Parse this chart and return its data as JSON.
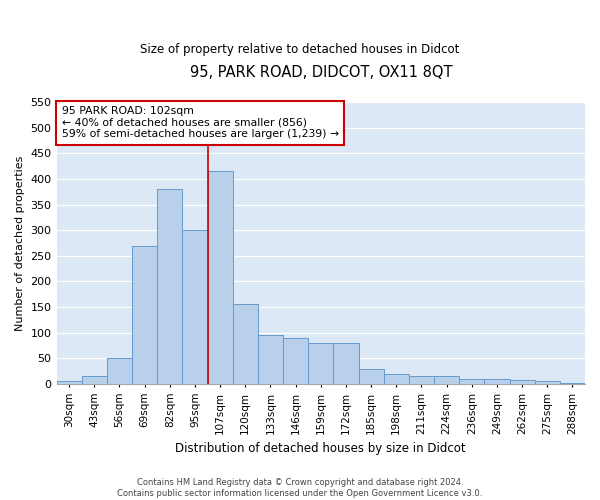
{
  "title": "95, PARK ROAD, DIDCOT, OX11 8QT",
  "subtitle": "Size of property relative to detached houses in Didcot",
  "xlabel": "Distribution of detached houses by size in Didcot",
  "ylabel": "Number of detached properties",
  "categories": [
    "30sqm",
    "43sqm",
    "56sqm",
    "69sqm",
    "82sqm",
    "95sqm",
    "107sqm",
    "120sqm",
    "133sqm",
    "146sqm",
    "159sqm",
    "172sqm",
    "185sqm",
    "198sqm",
    "211sqm",
    "224sqm",
    "236sqm",
    "249sqm",
    "262sqm",
    "275sqm",
    "288sqm"
  ],
  "values": [
    5,
    15,
    50,
    270,
    380,
    300,
    415,
    155,
    95,
    90,
    80,
    80,
    30,
    20,
    15,
    15,
    10,
    10,
    8,
    5,
    2
  ],
  "bar_color": "#b8d0ea",
  "bar_edgecolor": "#6699cc",
  "vline_color": "#cc0000",
  "annotation_text": "95 PARK ROAD: 102sqm\n← 40% of detached houses are smaller (856)\n59% of semi-detached houses are larger (1,239) →",
  "annotation_box_color": "white",
  "annotation_box_edgecolor": "#cc0000",
  "ylim": [
    0,
    550
  ],
  "yticks": [
    0,
    50,
    100,
    150,
    200,
    250,
    300,
    350,
    400,
    450,
    500,
    550
  ],
  "background_color": "#dce8f5",
  "footer1": "Contains HM Land Registry data © Crown copyright and database right 2024.",
  "footer2": "Contains public sector information licensed under the Open Government Licence v3.0."
}
